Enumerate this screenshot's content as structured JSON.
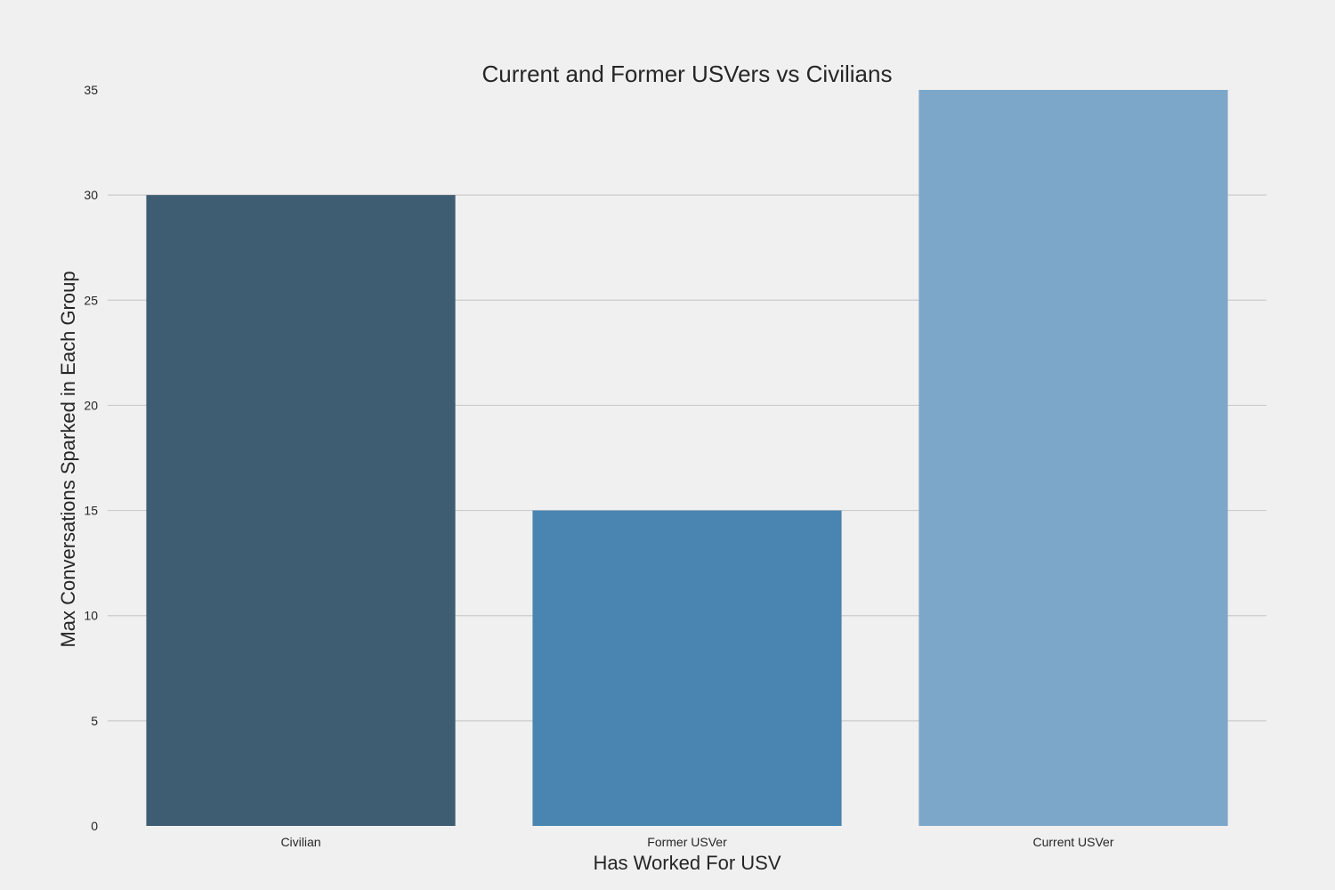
{
  "chart_data": {
    "type": "bar",
    "title": "Current and Former USVers vs Civilians",
    "xlabel": "Has Worked For USV",
    "ylabel": "Max Conversations Sparked in Each Group",
    "categories": [
      "Civilian",
      "Former USVer",
      "Current USVer"
    ],
    "values": [
      30,
      15,
      35
    ],
    "colors": [
      "#3e5d72",
      "#4a84b0",
      "#7da7c9"
    ],
    "ylim": [
      0,
      35
    ],
    "yticks": [
      0,
      5,
      10,
      15,
      20,
      25,
      30,
      35
    ],
    "grid": "horizontal",
    "background": "#f0f0f0"
  }
}
